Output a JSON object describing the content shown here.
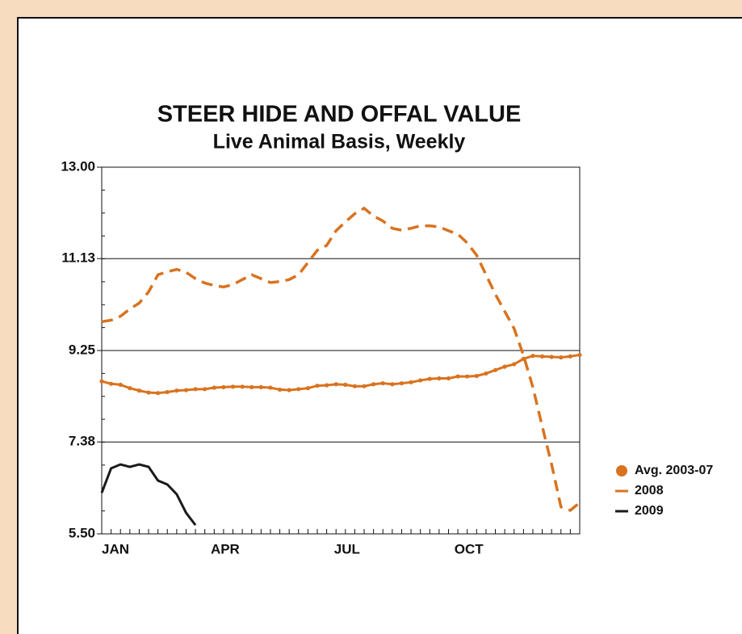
{
  "chart_data": {
    "type": "line",
    "title": "STEER HIDE AND OFFAL VALUE",
    "subtitle": "Live Animal Basis, Weekly",
    "categories": [
      "JAN",
      null,
      null,
      null,
      null,
      null,
      null,
      null,
      null,
      null,
      null,
      null,
      null,
      "APR",
      null,
      null,
      null,
      null,
      null,
      null,
      null,
      null,
      null,
      null,
      null,
      null,
      "JUL",
      null,
      null,
      null,
      null,
      null,
      null,
      null,
      null,
      null,
      null,
      null,
      null,
      "OCT",
      null,
      null,
      null,
      null,
      null,
      null,
      null,
      null,
      null,
      null,
      null,
      null
    ],
    "ylim": [
      5.5,
      13.0
    ],
    "yticks": [
      {
        "value": 5.5,
        "label": "5.50"
      },
      {
        "value": 7.38,
        "label": "7.38"
      },
      {
        "value": 9.25,
        "label": "9.25"
      },
      {
        "value": 11.13,
        "label": "11.13"
      },
      {
        "value": 13.0,
        "label": "13.00"
      }
    ],
    "grid": true,
    "legend": "right",
    "series": [
      {
        "name": "Avg. 2003-07",
        "color": "#d9731f",
        "marker": "circle",
        "dash": "solid",
        "values": [
          8.62,
          8.57,
          8.55,
          8.48,
          8.43,
          8.39,
          8.38,
          8.4,
          8.43,
          8.44,
          8.46,
          8.46,
          8.49,
          8.5,
          8.51,
          8.51,
          8.5,
          8.5,
          8.49,
          8.45,
          8.44,
          8.46,
          8.48,
          8.53,
          8.54,
          8.56,
          8.55,
          8.52,
          8.52,
          8.56,
          8.58,
          8.56,
          8.58,
          8.6,
          8.64,
          8.67,
          8.68,
          8.68,
          8.72,
          8.72,
          8.73,
          8.78,
          8.85,
          8.92,
          8.97,
          9.08,
          9.14,
          9.13,
          9.12,
          9.11,
          9.13,
          9.16
        ]
      },
      {
        "name": "2008",
        "color": "#d9731f",
        "marker": "none",
        "dash": "dashed",
        "values": [
          9.84,
          9.87,
          9.95,
          10.1,
          10.22,
          10.45,
          10.8,
          10.86,
          10.91,
          10.85,
          10.72,
          10.63,
          10.58,
          10.55,
          10.6,
          10.7,
          10.8,
          10.72,
          10.64,
          10.66,
          10.7,
          10.8,
          11.05,
          11.3,
          11.4,
          11.7,
          11.88,
          12.05,
          12.16,
          12.0,
          11.9,
          11.75,
          11.71,
          11.75,
          11.8,
          11.8,
          11.78,
          11.7,
          11.63,
          11.45,
          11.2,
          10.8,
          10.4,
          10.05,
          9.7,
          9.15,
          8.5,
          7.7,
          6.92,
          6.05,
          5.98,
          6.14
        ]
      },
      {
        "name": "2009",
        "color": "#1a1a1a",
        "marker": "none",
        "dash": "solid",
        "values": [
          6.34,
          6.84,
          6.92,
          6.87,
          6.92,
          6.87,
          6.59,
          6.51,
          6.31,
          5.93,
          5.68,
          null,
          null,
          null,
          null,
          null,
          null,
          null,
          null,
          null,
          null,
          null,
          null,
          null,
          null,
          null,
          null,
          null,
          null,
          null,
          null,
          null,
          null,
          null,
          null,
          null,
          null,
          null,
          null,
          null,
          null,
          null,
          null,
          null,
          null,
          null,
          null,
          null,
          null,
          null,
          null,
          null
        ]
      }
    ]
  }
}
